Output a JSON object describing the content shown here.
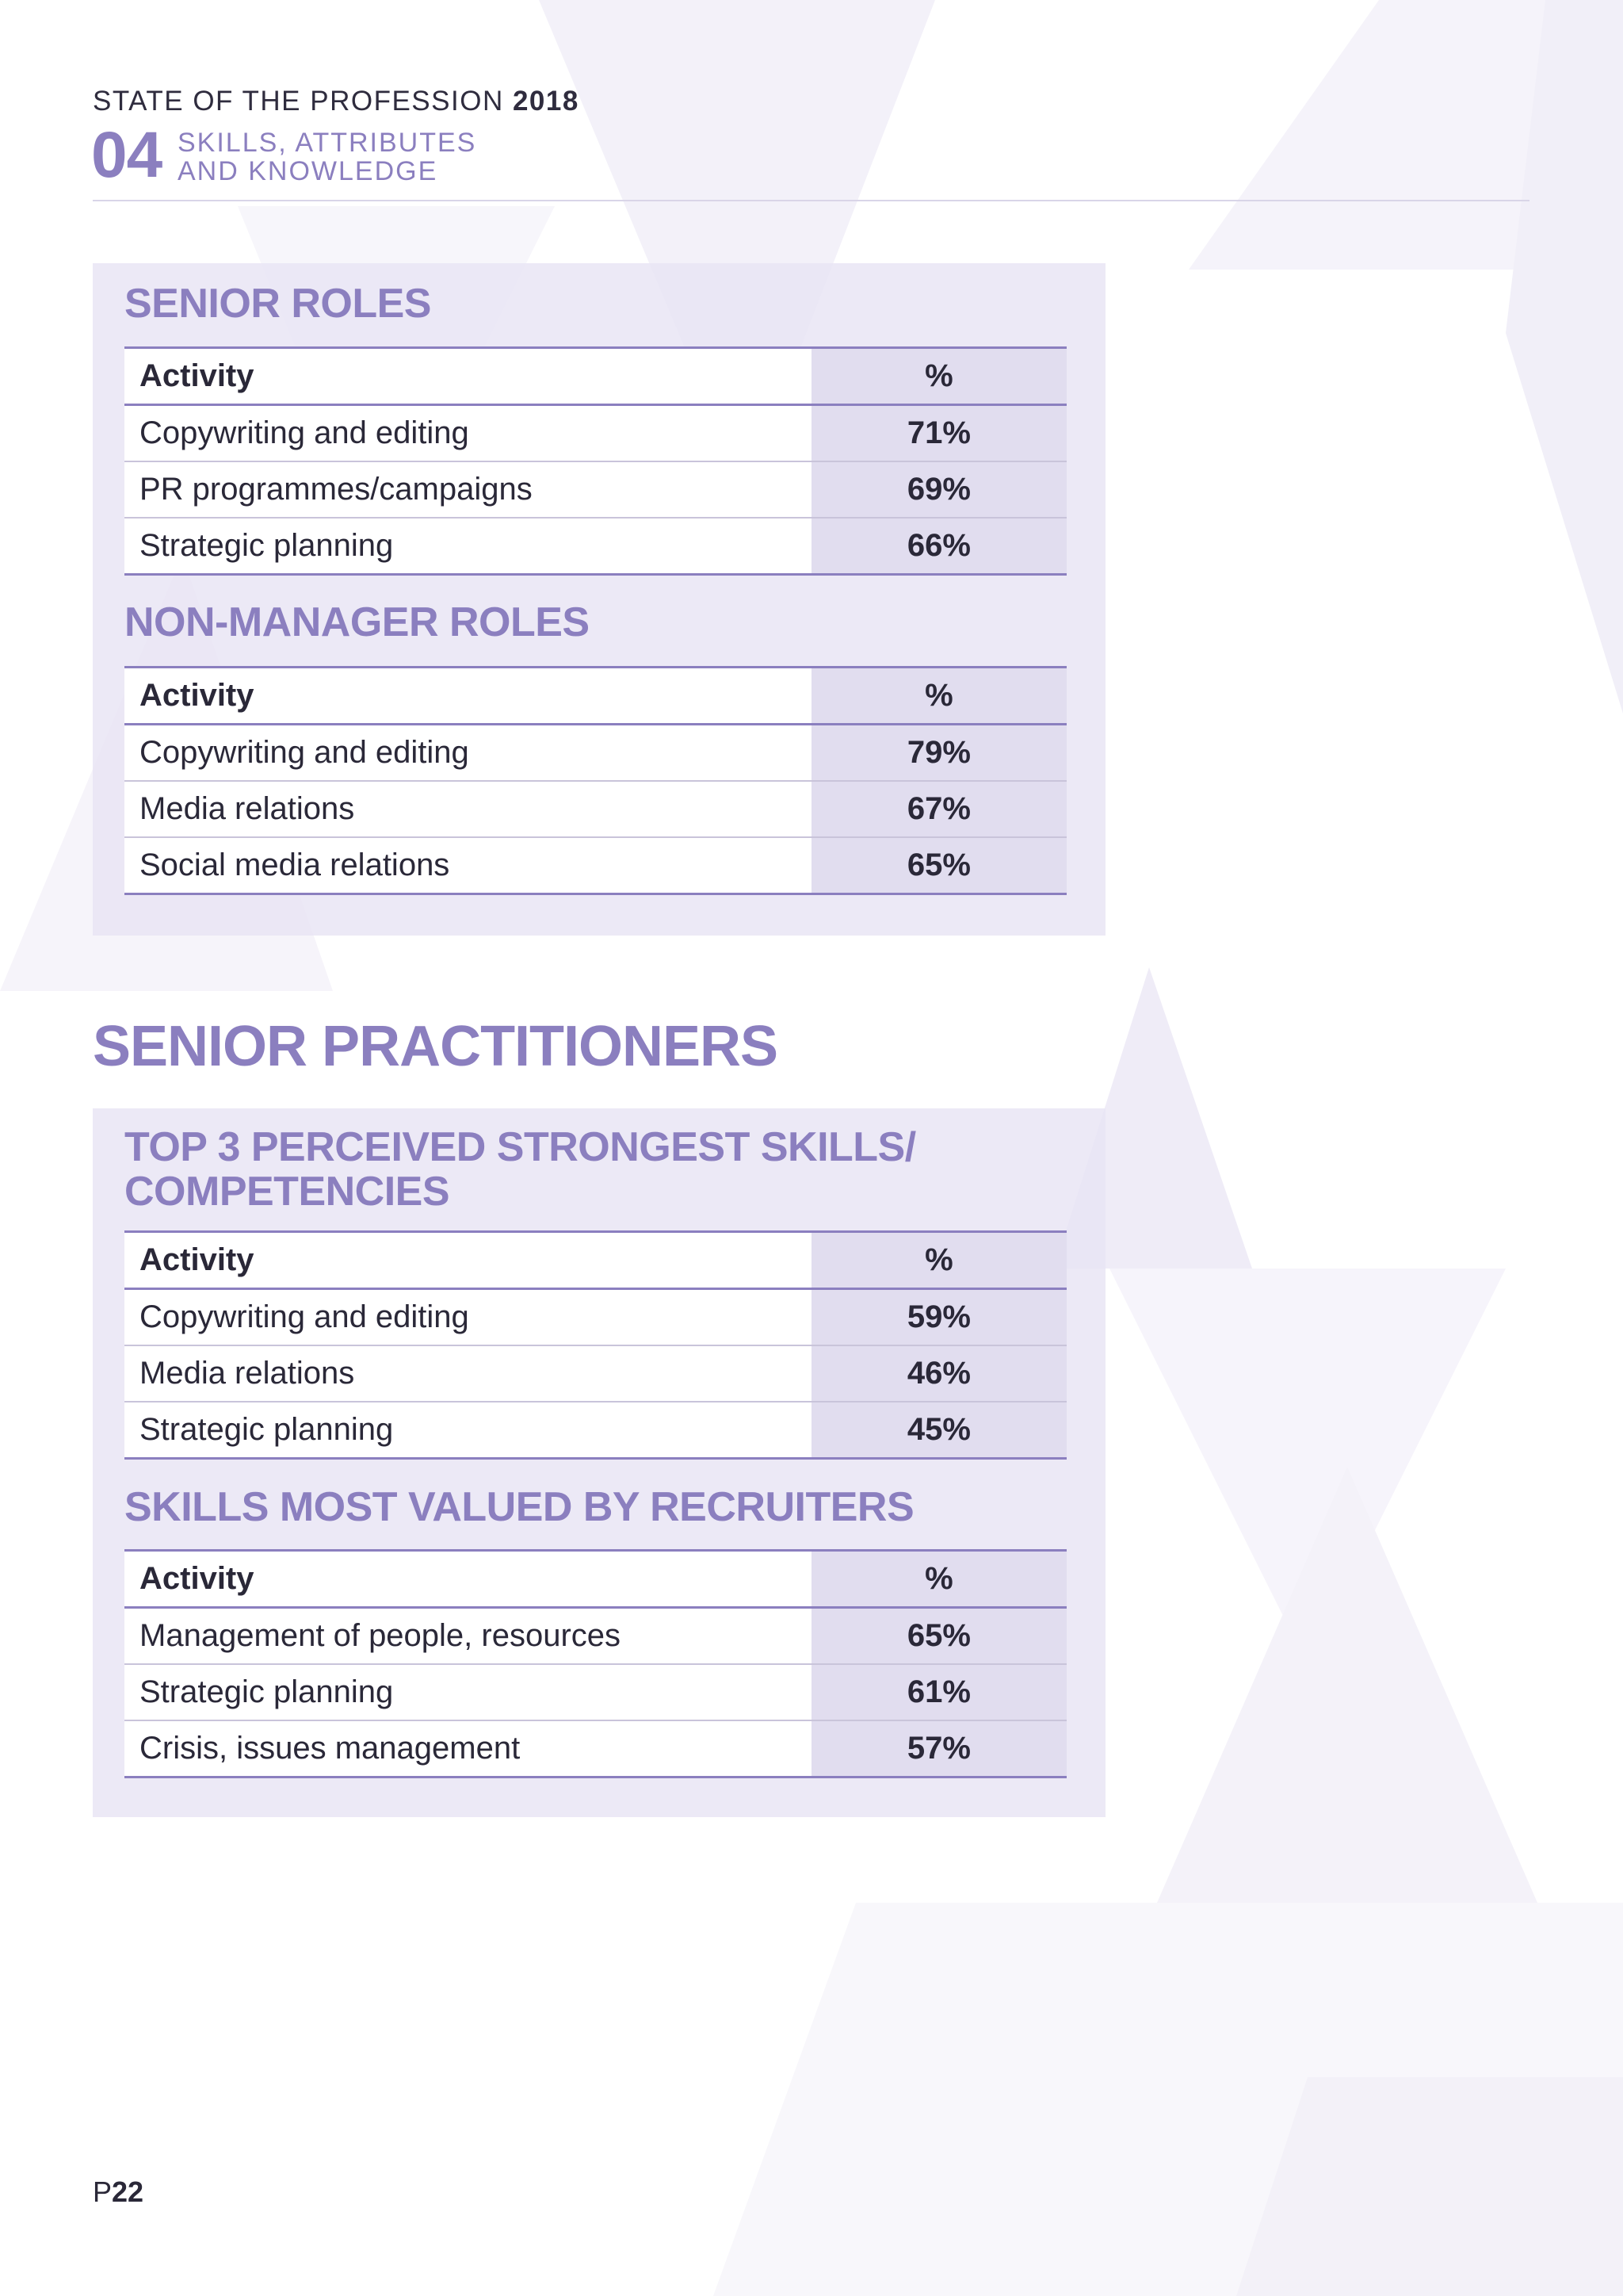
{
  "header": {
    "doc_title": "STATE OF THE PROFESSION",
    "doc_year": "2018",
    "chapter_number": "04",
    "chapter_title_line1": "SKILLS, ATTRIBUTES",
    "chapter_title_line2": "AND KNOWLEDGE"
  },
  "senior_roles": {
    "title": "SENIOR ROLES",
    "col_activity": "Activity",
    "col_pct": "%",
    "rows": [
      {
        "activity": "Copywriting and editing",
        "pct": "71%"
      },
      {
        "activity": "PR programmes/campaigns",
        "pct": "69%"
      },
      {
        "activity": "Strategic planning",
        "pct": "66%"
      }
    ]
  },
  "non_manager_roles": {
    "title": "NON-MANAGER ROLES",
    "col_activity": "Activity",
    "col_pct": "%",
    "rows": [
      {
        "activity": "Copywriting and editing",
        "pct": "79%"
      },
      {
        "activity": "Media relations",
        "pct": "67%"
      },
      {
        "activity": "Social media relations",
        "pct": "65%"
      }
    ]
  },
  "senior_practitioners": {
    "title": "SENIOR PRACTITIONERS"
  },
  "top3_skills": {
    "title_line1": "TOP 3 PERCEIVED STRONGEST SKILLS/",
    "title_line2": "COMPETENCIES",
    "col_activity": "Activity",
    "col_pct": "%",
    "rows": [
      {
        "activity": "Copywriting and editing",
        "pct": "59%"
      },
      {
        "activity": "Media relations",
        "pct": "46%"
      },
      {
        "activity": "Strategic planning",
        "pct": "45%"
      }
    ]
  },
  "recruiter_skills": {
    "title": "SKILLS MOST VALUED BY RECRUITERS",
    "col_activity": "Activity",
    "col_pct": "%",
    "rows": [
      {
        "activity": "Management of people, resources",
        "pct": "65%"
      },
      {
        "activity": "Strategic planning",
        "pct": "61%"
      },
      {
        "activity": "Crisis, issues management",
        "pct": "57%"
      }
    ]
  },
  "footer": {
    "page_prefix": "P",
    "page_number": "22"
  },
  "colors": {
    "accent": "#8b7fbf",
    "panel": "#e8e4f4",
    "pct_column": "#e1ddef",
    "text": "#2a2838"
  }
}
